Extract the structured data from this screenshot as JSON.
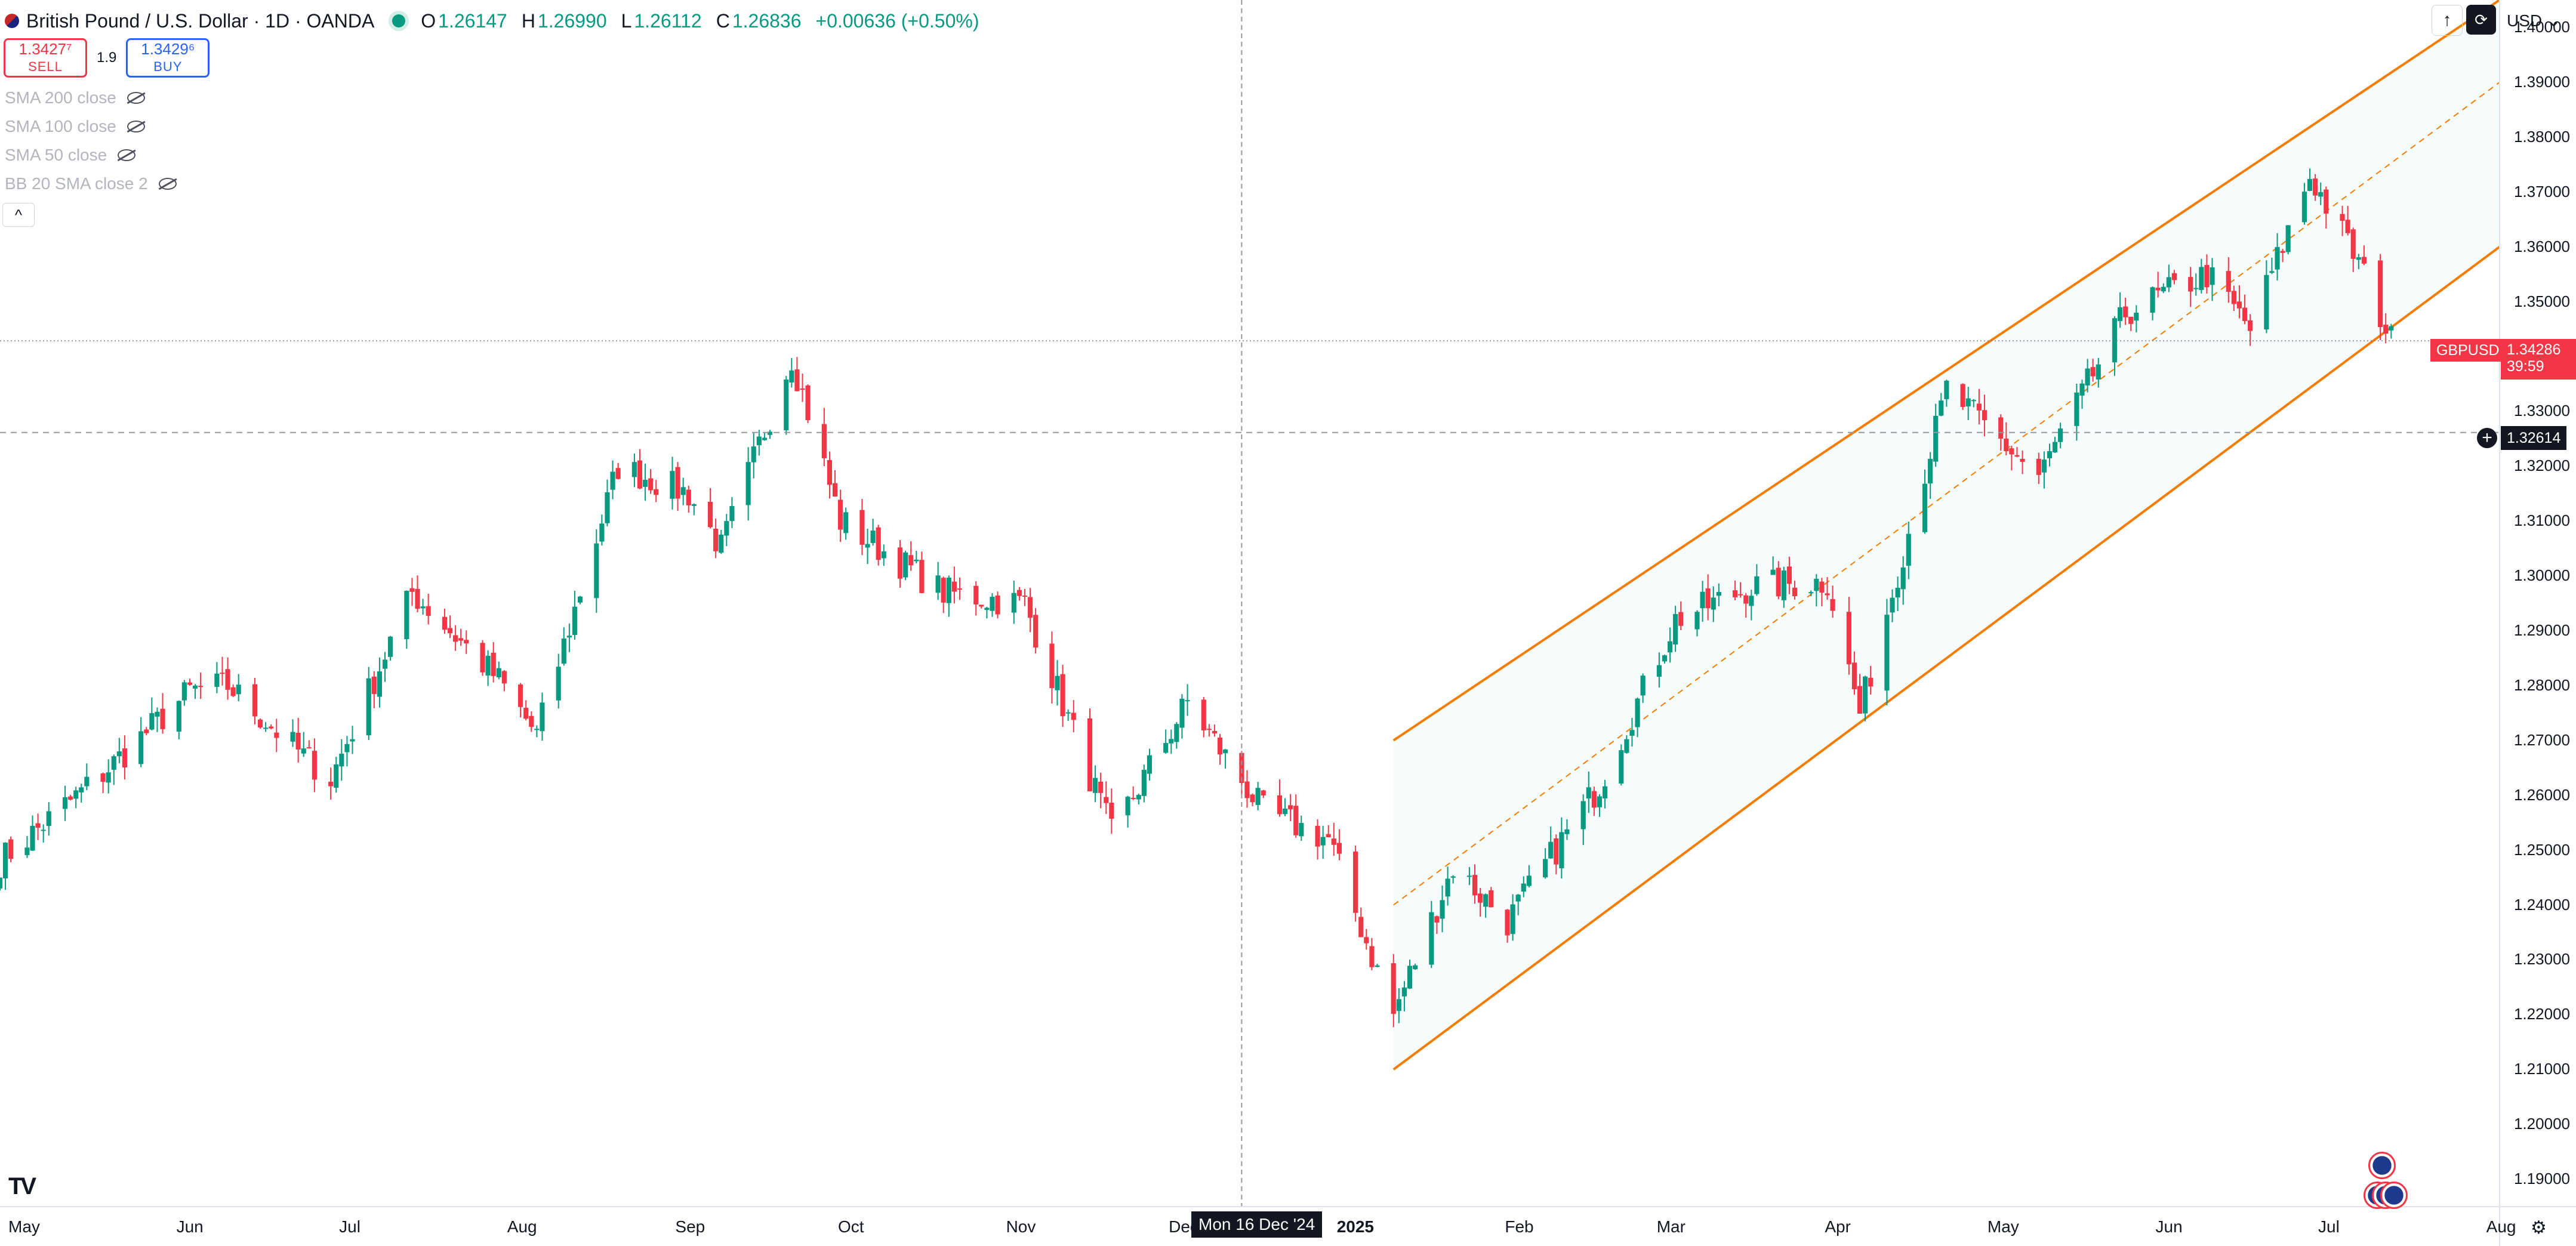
{
  "header": {
    "symbol_title": "British Pound / U.S. Dollar · 1D · OANDA",
    "ohlc": {
      "open_label": "O",
      "open": "1.26147",
      "high_label": "H",
      "high": "1.26990",
      "low_label": "L",
      "low": "1.26112",
      "close_label": "C",
      "close": "1.26836",
      "change": "+0.00636 (+0.50%)"
    }
  },
  "trade": {
    "sell_price": "1.3427⁷",
    "sell_label": "SELL",
    "spread": "1.9",
    "buy_price": "1.3429⁶",
    "buy_label": "BUY"
  },
  "indicators": [
    "SMA 200 close",
    "SMA 100 close",
    "SMA 50 close",
    "BB 20 SMA close 2"
  ],
  "toolbar": {
    "currency": "USD",
    "arrow_icon": "↑",
    "collapse_icon": "^"
  },
  "price_axis": [
    "1.40000",
    "1.39000",
    "1.38000",
    "1.37000",
    "1.36000",
    "1.35000",
    "1.34000",
    "1.33000",
    "1.32000",
    "1.31000",
    "1.30000",
    "1.29000",
    "1.28000",
    "1.27000",
    "1.26000",
    "1.25000",
    "1.24000",
    "1.23000",
    "1.22000",
    "1.21000",
    "1.20000",
    "1.19000"
  ],
  "time_axis": [
    "May",
    "Jun",
    "Jul",
    "Aug",
    "Sep",
    "Oct",
    "Nov",
    "Dec",
    "2025",
    "Feb",
    "Mar",
    "Apr",
    "May",
    "Jun",
    "Jul",
    "Aug"
  ],
  "last_price": {
    "symbol": "GBPUSD",
    "price": "1.34286",
    "countdown": "39:59"
  },
  "crosshair": {
    "price": "1.32614",
    "time": "Mon 16 Dec '24",
    "plus_icon": "+"
  },
  "colors": {
    "up": "#089981",
    "down": "#f23645",
    "channel": "#f57c00"
  },
  "chart_data": {
    "type": "candlestick",
    "symbol": "GBPUSD",
    "interval": "1D",
    "ylim": [
      1.185,
      1.405
    ],
    "x_range": [
      "2024-05-01",
      "2025-08-05"
    ],
    "segments": [
      {
        "date": "2024-05-01",
        "price": 1.248
      },
      {
        "date": "2024-05-20",
        "price": 1.264
      },
      {
        "date": "2024-06-05",
        "price": 1.279
      },
      {
        "date": "2024-06-12",
        "price": 1.28
      },
      {
        "date": "2024-06-25",
        "price": 1.268
      },
      {
        "date": "2024-07-01",
        "price": 1.263
      },
      {
        "date": "2024-07-16",
        "price": 1.297
      },
      {
        "date": "2024-08-01",
        "price": 1.281
      },
      {
        "date": "2024-08-08",
        "price": 1.271
      },
      {
        "date": "2024-08-23",
        "price": 1.32
      },
      {
        "date": "2024-09-05",
        "price": 1.315
      },
      {
        "date": "2024-09-11",
        "price": 1.305
      },
      {
        "date": "2024-09-24",
        "price": 1.34
      },
      {
        "date": "2024-10-03",
        "price": 1.31
      },
      {
        "date": "2024-10-22",
        "price": 1.297
      },
      {
        "date": "2024-11-06",
        "price": 1.295
      },
      {
        "date": "2024-11-22",
        "price": 1.253
      },
      {
        "date": "2024-12-06",
        "price": 1.277
      },
      {
        "date": "2024-12-20",
        "price": 1.257
      },
      {
        "date": "2025-01-01",
        "price": 1.252
      },
      {
        "date": "2025-01-13",
        "price": 1.22
      },
      {
        "date": "2025-01-24",
        "price": 1.247
      },
      {
        "date": "2025-02-03",
        "price": 1.237
      },
      {
        "date": "2025-02-20",
        "price": 1.262
      },
      {
        "date": "2025-03-06",
        "price": 1.292
      },
      {
        "date": "2025-03-20",
        "price": 1.298
      },
      {
        "date": "2025-04-03",
        "price": 1.299
      },
      {
        "date": "2025-04-09",
        "price": 1.275
      },
      {
        "date": "2025-04-25",
        "price": 1.334
      },
      {
        "date": "2025-05-12",
        "price": 1.318
      },
      {
        "date": "2025-05-28",
        "price": 1.348
      },
      {
        "date": "2025-06-12",
        "price": 1.355
      },
      {
        "date": "2025-06-20",
        "price": 1.345
      },
      {
        "date": "2025-07-01",
        "price": 1.373
      },
      {
        "date": "2025-07-10",
        "price": 1.357
      },
      {
        "date": "2025-07-16",
        "price": 1.343
      }
    ],
    "channel": {
      "upper": [
        {
          "date": "2025-01-13",
          "price": 1.27
        },
        {
          "date": "2025-08-05",
          "price": 1.405
        }
      ],
      "middle": [
        {
          "date": "2025-01-13",
          "price": 1.24
        },
        {
          "date": "2025-08-05",
          "price": 1.39
        }
      ],
      "lower": [
        {
          "date": "2025-01-13",
          "price": 1.21
        },
        {
          "date": "2025-08-05",
          "price": 1.36
        }
      ]
    },
    "horizontal_lines": [
      {
        "price": 1.34286,
        "style": "dotted"
      },
      {
        "price": 1.32614,
        "style": "dashed"
      }
    ],
    "crosshair_date": "2024-12-16"
  }
}
